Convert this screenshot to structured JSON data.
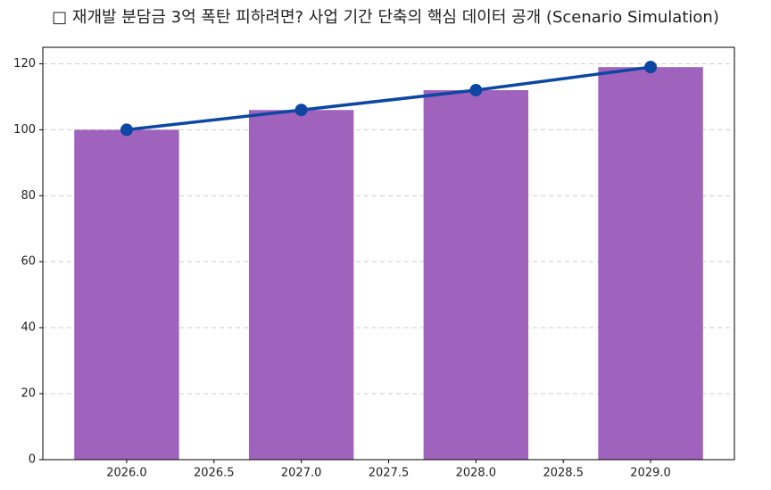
{
  "chart_data": {
    "type": "bar",
    "title": "□ 재개발 분담금 3억 폭탄 피하려면? 사업 기간 단축의 핵심 데이터 공개 (Scenario Simulation)",
    "x": [
      2026,
      2027,
      2028,
      2029
    ],
    "series": [
      {
        "type": "bar",
        "color": "#a063bd",
        "values": [
          100,
          106,
          112,
          119
        ]
      },
      {
        "type": "line",
        "color": "#0d47a1",
        "values": [
          100,
          106,
          112,
          119
        ]
      }
    ],
    "xlim": [
      2025.52,
      2029.48
    ],
    "xticks": [
      {
        "value": 2026,
        "label": "2026.0"
      },
      {
        "value": 2026.5,
        "label": "2026.5"
      },
      {
        "value": 2027,
        "label": "2027.0"
      },
      {
        "value": 2027.5,
        "label": "2027.5"
      },
      {
        "value": 2028,
        "label": "2028.0"
      },
      {
        "value": 2028.5,
        "label": "2028.5"
      },
      {
        "value": 2029,
        "label": "2029.0"
      }
    ],
    "ylim": [
      0,
      125
    ],
    "yticks": [
      0,
      20,
      40,
      60,
      80,
      100,
      120
    ],
    "grid": true
  }
}
